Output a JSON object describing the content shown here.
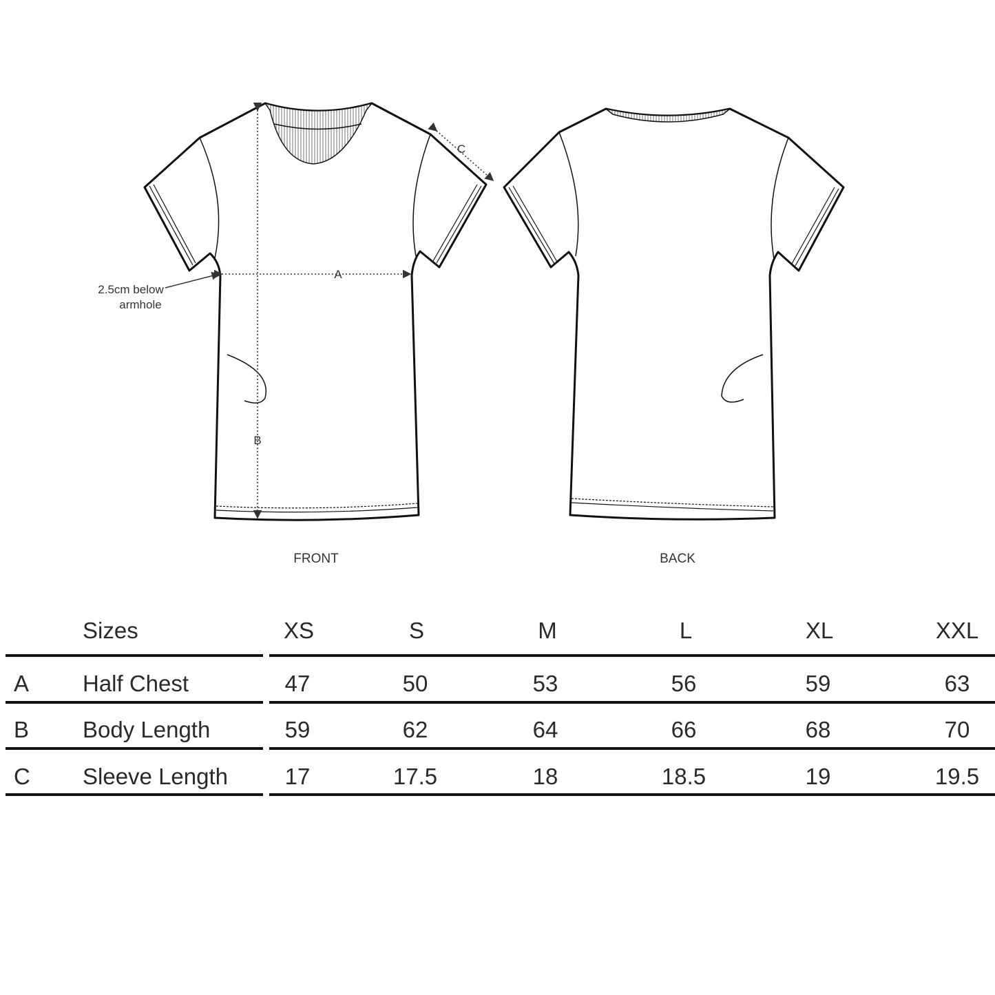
{
  "diagram": {
    "views": [
      "FRONT",
      "BACK"
    ],
    "markers": {
      "a": "A",
      "b": "B",
      "c": "C"
    },
    "note_line1": "2.5cm below",
    "note_line2": "armhole"
  },
  "table": {
    "header": {
      "label": "Sizes",
      "sizes": [
        "XS",
        "S",
        "M",
        "L",
        "XL",
        "XXL"
      ]
    },
    "rows": [
      {
        "key": "A",
        "label": "Half Chest",
        "values": [
          "47",
          "50",
          "53",
          "56",
          "59",
          "63"
        ]
      },
      {
        "key": "B",
        "label": "Body Length",
        "values": [
          "59",
          "62",
          "64",
          "66",
          "68",
          "70"
        ]
      },
      {
        "key": "C",
        "label": "Sleeve Length",
        "values": [
          "17",
          "17.5",
          "18",
          "18.5",
          "19",
          "19.5"
        ]
      }
    ]
  }
}
